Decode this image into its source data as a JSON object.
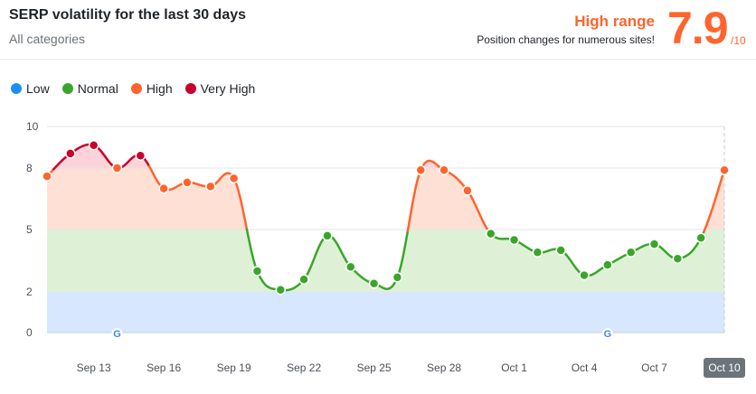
{
  "header": {
    "title": "SERP volatility for the last 30 days",
    "subtitle": "All categories",
    "range_label": "High range",
    "range_description": "Position changes for numerous sites!",
    "score": "7.9",
    "score_max": "/10"
  },
  "colors": {
    "low": "#1a8ff5",
    "normal": "#3aa629",
    "high": "#ff642d",
    "very_high": "#c8002c",
    "band_low": "#d6e7ff",
    "band_normal": "#def1d7",
    "band_high": "#ffe0d4",
    "band_very_high": "#fbd3d8"
  },
  "legend": [
    {
      "label": "Low",
      "color": "#1a8ff5"
    },
    {
      "label": "Normal",
      "color": "#3aa629"
    },
    {
      "label": "High",
      "color": "#ff642d"
    },
    {
      "label": "Very High",
      "color": "#c8002c"
    }
  ],
  "chart_data": {
    "type": "area",
    "ylim": [
      0,
      10
    ],
    "yticks": [
      0,
      2,
      5,
      8,
      10
    ],
    "bands": [
      {
        "name": "Low",
        "from": 0,
        "to": 2
      },
      {
        "name": "Normal",
        "from": 2,
        "to": 5
      },
      {
        "name": "High",
        "from": 5,
        "to": 8
      },
      {
        "name": "Very High",
        "from": 8,
        "to": 10
      }
    ],
    "x": [
      "Sep 11",
      "Sep 12",
      "Sep 13",
      "Sep 14",
      "Sep 15",
      "Sep 16",
      "Sep 17",
      "Sep 18",
      "Sep 19",
      "Sep 20",
      "Sep 21",
      "Sep 22",
      "Sep 23",
      "Sep 24",
      "Sep 25",
      "Sep 26",
      "Sep 27",
      "Sep 28",
      "Sep 29",
      "Sep 30",
      "Oct 1",
      "Oct 2",
      "Oct 3",
      "Oct 4",
      "Oct 5",
      "Oct 6",
      "Oct 7",
      "Oct 8",
      "Oct 9",
      "Oct 10"
    ],
    "values": [
      7.6,
      8.7,
      9.1,
      8.0,
      8.6,
      7.0,
      7.3,
      7.1,
      7.5,
      3.0,
      2.1,
      2.6,
      4.7,
      3.2,
      2.4,
      2.7,
      7.9,
      7.9,
      6.9,
      4.8,
      4.5,
      3.9,
      4.0,
      2.8,
      3.3,
      3.9,
      4.3,
      3.6,
      4.6,
      7.9
    ],
    "xtick_labels": [
      "Sep 13",
      "Sep 16",
      "Sep 19",
      "Sep 22",
      "Sep 25",
      "Sep 28",
      "Oct 1",
      "Oct 4",
      "Oct 7",
      "Oct 10"
    ],
    "xtick_indices": [
      2,
      5,
      8,
      11,
      14,
      17,
      20,
      23,
      26,
      29
    ],
    "highlighted_tick": "Oct 10",
    "google_update_markers": [
      "Sep 14",
      "Oct 5"
    ]
  }
}
